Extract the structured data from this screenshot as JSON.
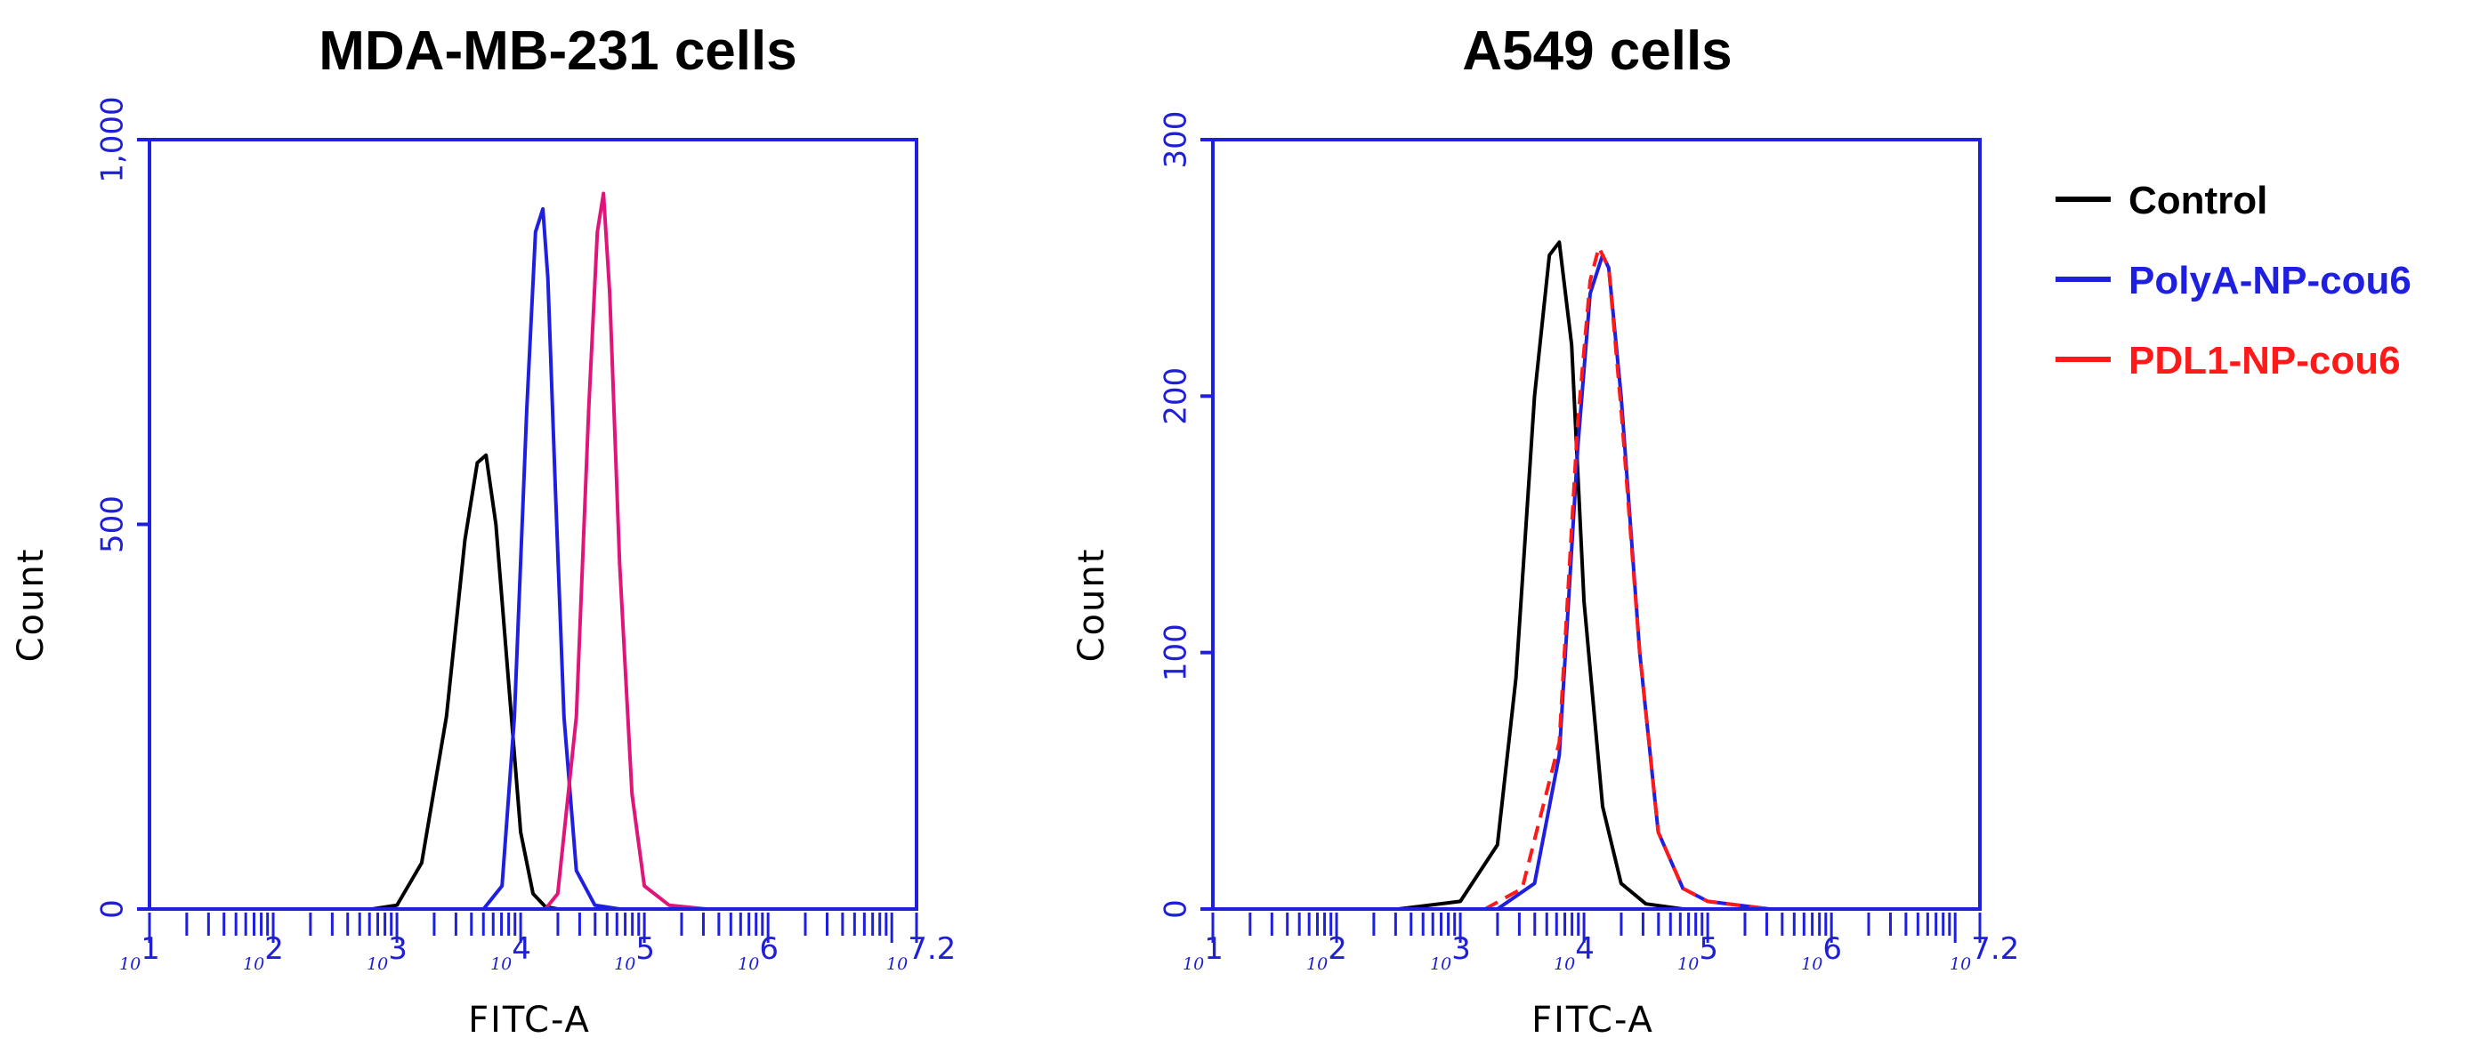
{
  "chart_data": [
    {
      "type": "line",
      "title": "MDA-MB-231 cells",
      "xlabel": "FITC-A",
      "ylabel": "Count",
      "xscale": "log10",
      "xlim": [
        1,
        7.2
      ],
      "ylim": [
        0,
        1000
      ],
      "yticks": [
        0,
        500,
        1000
      ],
      "ytick_labels": [
        "0",
        "500",
        "1,000"
      ],
      "xtick_base": "10",
      "xtick_exps": [
        "1",
        "2",
        "3",
        "4",
        "5",
        "6",
        "7.2"
      ],
      "series": [
        {
          "name": "Control",
          "color": "#000000",
          "x": [
            2.8,
            3.0,
            3.2,
            3.4,
            3.55,
            3.65,
            3.72,
            3.8,
            3.9,
            4.0,
            4.1,
            4.2,
            4.3
          ],
          "y": [
            0,
            5,
            60,
            250,
            480,
            580,
            590,
            500,
            300,
            100,
            20,
            3,
            0
          ]
        },
        {
          "name": "PolyA-NP-cou6",
          "color": "#1f1fe0",
          "x": [
            3.7,
            3.85,
            3.95,
            4.05,
            4.12,
            4.18,
            4.22,
            4.28,
            4.35,
            4.45,
            4.6,
            4.8
          ],
          "y": [
            0,
            30,
            250,
            650,
            880,
            910,
            820,
            550,
            250,
            50,
            5,
            0
          ]
        },
        {
          "name": "PDL1-NP-cou6",
          "color": "#e0157a",
          "x": [
            4.2,
            4.3,
            4.45,
            4.55,
            4.62,
            4.67,
            4.72,
            4.8,
            4.9,
            5.0,
            5.2,
            5.5
          ],
          "y": [
            0,
            20,
            250,
            650,
            880,
            930,
            800,
            450,
            150,
            30,
            5,
            0
          ]
        }
      ]
    },
    {
      "type": "line",
      "title": "A549 cells",
      "xlabel": "FITC-A",
      "ylabel": "Count",
      "xscale": "log10",
      "xlim": [
        1,
        7.2
      ],
      "ylim": [
        0,
        300
      ],
      "yticks": [
        0,
        100,
        200,
        300
      ],
      "ytick_labels": [
        "0",
        "100",
        "200",
        "300"
      ],
      "xtick_base": "10",
      "xtick_exps": [
        "1",
        "2",
        "3",
        "4",
        "5",
        "6",
        "7.2"
      ],
      "series": [
        {
          "name": "Control",
          "color": "#000000",
          "x": [
            2.5,
            3.0,
            3.3,
            3.45,
            3.6,
            3.72,
            3.8,
            3.9,
            4.0,
            4.15,
            4.3,
            4.5,
            4.8
          ],
          "y": [
            0,
            3,
            25,
            90,
            200,
            255,
            260,
            220,
            120,
            40,
            10,
            2,
            0
          ]
        },
        {
          "name": "PolyA-NP-cou6",
          "color": "#1f1fe0",
          "x": [
            3.3,
            3.6,
            3.8,
            3.95,
            4.05,
            4.15,
            4.2,
            4.3,
            4.45,
            4.6,
            4.8,
            5.0,
            5.5
          ],
          "y": [
            0,
            10,
            60,
            180,
            240,
            255,
            250,
            200,
            100,
            30,
            8,
            3,
            0
          ]
        },
        {
          "name": "PDL1-NP-cou6",
          "color": "#ff1a1a",
          "x": [
            3.2,
            3.5,
            3.8,
            3.95,
            4.05,
            4.12,
            4.2,
            4.3,
            4.45,
            4.6,
            4.8,
            5.0,
            5.5
          ],
          "y": [
            0,
            8,
            65,
            190,
            245,
            258,
            250,
            195,
            100,
            30,
            8,
            3,
            0
          ]
        }
      ]
    }
  ],
  "legend": {
    "entries": [
      {
        "label": "Control",
        "color": "#000000"
      },
      {
        "label": "PolyA-NP-cou6",
        "color": "#1f1fe0"
      },
      {
        "label": "PDL1-NP-cou6",
        "color": "#ff1a1a"
      }
    ]
  }
}
